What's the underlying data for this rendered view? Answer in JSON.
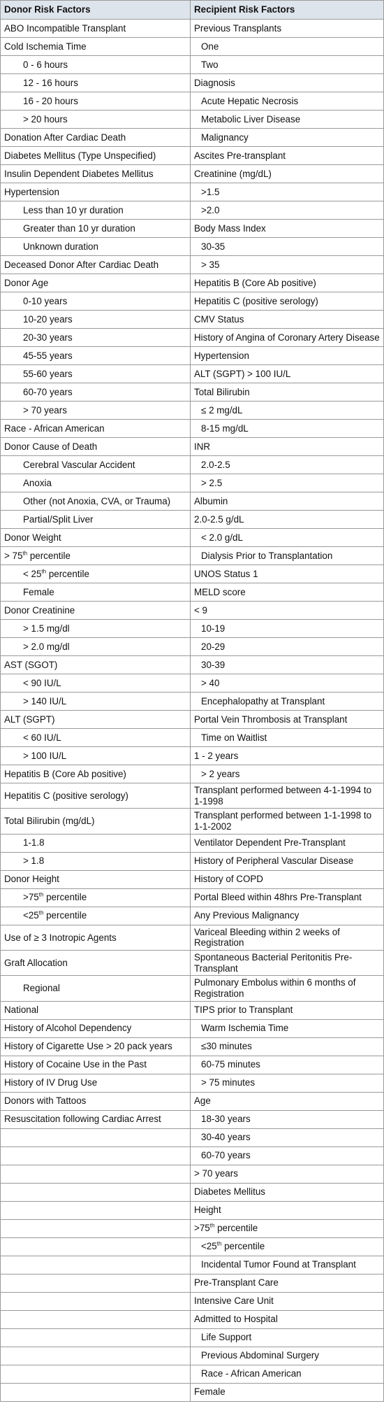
{
  "table": {
    "header": [
      "Donor Risk Factors",
      "Recipient Risk Factors"
    ],
    "rows": [
      [
        "ABO Incompatible Transplant",
        "Previous Transplants"
      ],
      [
        "Cold Ischemia Time",
        "One"
      ],
      [
        "0 - 6 hours",
        "Two"
      ],
      [
        "12 - 16 hours",
        "Diagnosis"
      ],
      [
        "16 - 20 hours",
        "Acute Hepatic Necrosis"
      ],
      [
        "> 20 hours",
        "Metabolic Liver Disease"
      ],
      [
        "Donation After Cardiac Death",
        "Malignancy"
      ],
      [
        "Diabetes Mellitus (Type Unspecified)",
        "Ascites Pre-transplant"
      ],
      [
        "Insulin Dependent Diabetes Mellitus",
        "Creatinine (mg/dL)"
      ],
      [
        "Hypertension",
        ">1.5"
      ],
      [
        "Less than 10 yr duration",
        ">2.0"
      ],
      [
        "Greater than 10 yr duration",
        "Body Mass Index"
      ],
      [
        "Unknown duration",
        "30-35"
      ],
      [
        "Deceased Donor After Cardiac Death",
        "> 35"
      ],
      [
        "Donor Age",
        "Hepatitis B (Core Ab positive)"
      ],
      [
        "0-10 years",
        "Hepatitis C (positive serology)"
      ],
      [
        "10-20 years",
        "CMV Status"
      ],
      [
        "20-30 years",
        "History of Angina of Coronary Artery Disease"
      ],
      [
        "45-55 years",
        "Hypertension"
      ],
      [
        "55-60 years",
        "ALT (SGPT) > 100 IU/L"
      ],
      [
        "60-70 years",
        "Total Bilirubin"
      ],
      [
        "> 70 years",
        "≤ 2 mg/dL"
      ],
      [
        "Race - African American",
        "8-15 mg/dL"
      ],
      [
        "Donor Cause of Death",
        "INR"
      ],
      [
        "Cerebral Vascular Accident",
        "2.0-2.5"
      ],
      [
        "Anoxia",
        "> 2.5"
      ],
      [
        "Other (not Anoxia, CVA, or Trauma)",
        "Albumin"
      ],
      [
        "Partial/Split Liver",
        "2.0-2.5 g/dL"
      ],
      [
        "Donor Weight",
        "< 2.0 g/dL"
      ],
      [
        "> 75th percentile",
        "Dialysis Prior to Transplantation"
      ],
      [
        "< 25th percentile",
        "UNOS Status 1"
      ],
      [
        "Female",
        "MELD  score"
      ],
      [
        "Donor Creatinine",
        "< 9"
      ],
      [
        "> 1.5 mg/dl",
        "10-19"
      ],
      [
        "> 2.0 mg/dl",
        "20-29"
      ],
      [
        "AST (SGOT)",
        "30-39"
      ],
      [
        "< 90 IU/L",
        "> 40"
      ],
      [
        "> 140  IU/L",
        "Encephalopathy at Transplant"
      ],
      [
        "ALT (SGPT)",
        "Portal Vein Thrombosis at Transplant"
      ],
      [
        "< 60  IU/L",
        "Time on Waitlist"
      ],
      [
        "> 100  IU/L",
        "1 - 2 years"
      ],
      [
        "Hepatitis B (Core Ab positive)",
        "> 2 years"
      ],
      [
        "Hepatitis C (positive serology)",
        "Transplant performed between 4-1-1994 to 1-1998"
      ],
      [
        "Total Bilirubin (mg/dL)",
        "Transplant performed between 1-1-1998 to 1-1-2002"
      ],
      [
        "1-1.8",
        "Ventilator Dependent Pre-Transplant"
      ],
      [
        "> 1.8",
        "History of Peripheral Vascular Disease"
      ],
      [
        "Donor Height",
        "History of COPD"
      ],
      [
        ">75th percentile",
        "Portal Bleed within 48hrs Pre-Transplant"
      ],
      [
        "<25th percentile",
        "Any Previous Malignancy"
      ],
      [
        "Use of ≥ 3 Inotropic Agents",
        "Variceal Bleeding within 2 weeks of Registration"
      ],
      [
        "Graft Allocation",
        "Spontaneous Bacterial Peritonitis Pre-Transplant"
      ],
      [
        "Regional",
        "Pulmonary Embolus within 6 months of Registration"
      ],
      [
        "National",
        "TIPS prior to Transplant"
      ],
      [
        "History of Alcohol Dependency",
        "Warm Ischemia Time"
      ],
      [
        "History of Cigarette Use > 20 pack years",
        "≤30 minutes"
      ],
      [
        "History of Cocaine Use in the Past",
        "60-75 minutes"
      ],
      [
        "History of IV Drug Use",
        "> 75 minutes"
      ],
      [
        "Donors with Tattoos",
        "Age"
      ],
      [
        "Resuscitation following Cardiac Arrest",
        "18-30 years"
      ],
      [
        null,
        "30-40 years"
      ],
      [
        null,
        "60-70 years"
      ],
      [
        null,
        "> 70 years"
      ],
      [
        null,
        "Diabetes Mellitus"
      ],
      [
        null,
        "Height"
      ],
      [
        null,
        ">75th percentile"
      ],
      [
        null,
        "<25th percentile"
      ],
      [
        null,
        "Incidental Tumor Found at Transplant"
      ],
      [
        null,
        "Pre-Transplant Care"
      ],
      [
        null,
        "Intensive Care Unit"
      ],
      [
        null,
        "Admitted to Hospital"
      ],
      [
        null,
        "Life Support"
      ],
      [
        null,
        "Previous Abdominal Surgery"
      ],
      [
        null,
        "Race - African American"
      ],
      [
        null,
        "Female"
      ]
    ]
  }
}
